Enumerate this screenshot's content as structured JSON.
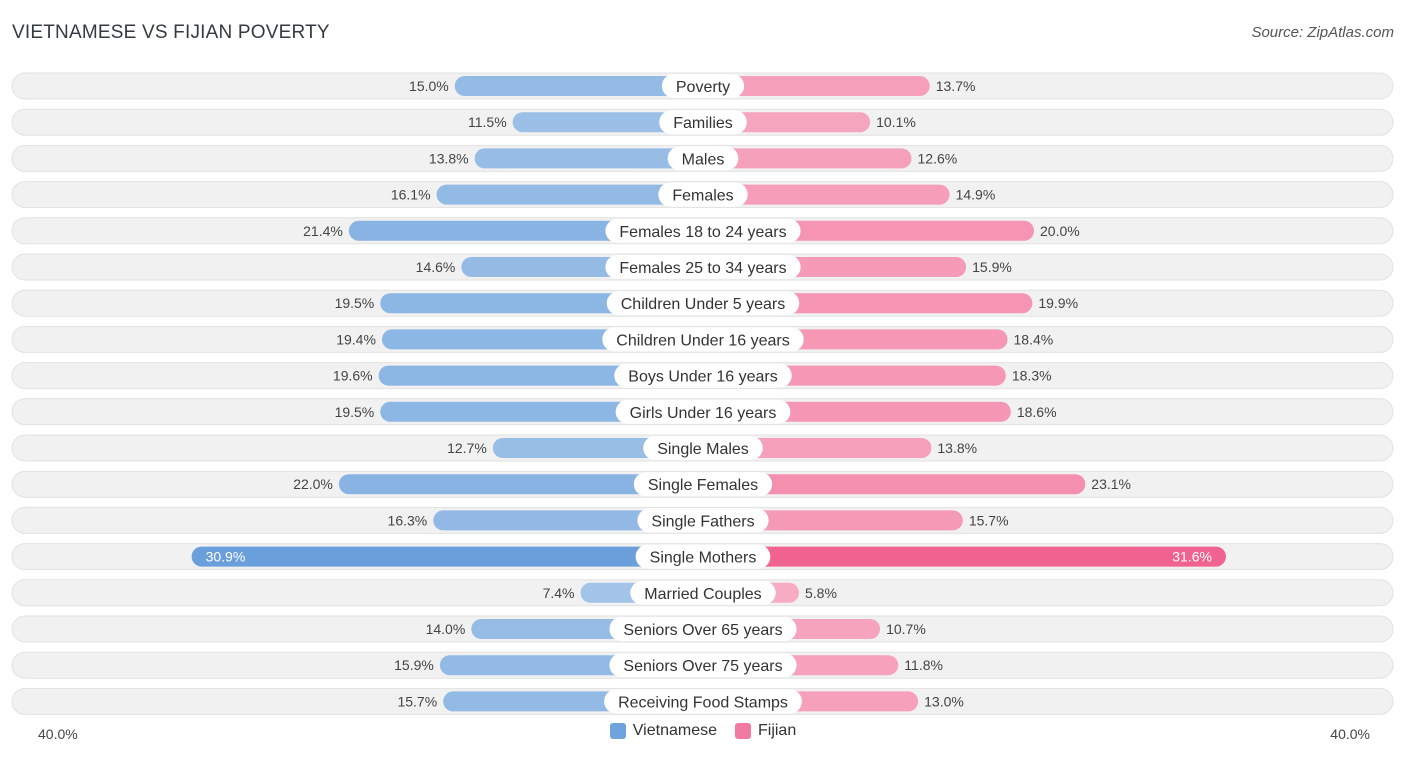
{
  "header": {
    "title": "VIETNAMESE VS FIJIAN POVERTY",
    "source": "Source: ZipAtlas.com"
  },
  "colors": {
    "vietnamese": "#6fa3dc",
    "fijian": "#f27aa0",
    "row_bg": "#efefef"
  },
  "chart_data": {
    "type": "bar",
    "orientation": "horizontal-diverging",
    "title": "VIETNAMESE VS FIJIAN POVERTY",
    "categories": [
      "Poverty",
      "Families",
      "Males",
      "Females",
      "Females 18 to 24 years",
      "Females 25 to 34 years",
      "Children Under 5 years",
      "Children Under 16 years",
      "Boys Under 16 years",
      "Girls Under 16 years",
      "Single Males",
      "Single Females",
      "Single Fathers",
      "Single Mothers",
      "Married Couples",
      "Seniors Over 65 years",
      "Seniors Over 75 years",
      "Receiving Food Stamps"
    ],
    "series": [
      {
        "name": "Vietnamese",
        "values": [
          15.0,
          11.5,
          13.8,
          16.1,
          21.4,
          14.6,
          19.5,
          19.4,
          19.6,
          19.5,
          12.7,
          22.0,
          16.3,
          30.9,
          7.4,
          14.0,
          15.9,
          15.7
        ],
        "labels": [
          "15.0%",
          "11.5%",
          "13.8%",
          "16.1%",
          "21.4%",
          "14.6%",
          "19.5%",
          "19.4%",
          "19.6%",
          "19.5%",
          "12.7%",
          "22.0%",
          "16.3%",
          "30.9%",
          "7.4%",
          "14.0%",
          "15.9%",
          "15.7%"
        ]
      },
      {
        "name": "Fijian",
        "values": [
          13.7,
          10.1,
          12.6,
          14.9,
          20.0,
          15.9,
          19.9,
          18.4,
          18.3,
          18.6,
          13.8,
          23.1,
          15.7,
          31.6,
          5.8,
          10.7,
          11.8,
          13.0
        ],
        "labels": [
          "13.7%",
          "10.1%",
          "12.6%",
          "14.9%",
          "20.0%",
          "15.9%",
          "19.9%",
          "18.4%",
          "18.3%",
          "18.6%",
          "13.8%",
          "23.1%",
          "15.7%",
          "31.6%",
          "5.8%",
          "10.7%",
          "11.8%",
          "13.0%"
        ]
      }
    ],
    "xlim": [
      -40,
      40
    ],
    "axis_min_label": "40.0%",
    "axis_max_label": "40.0%",
    "legend": [
      "Vietnamese",
      "Fijian"
    ],
    "legend_position": "bottom-center"
  }
}
